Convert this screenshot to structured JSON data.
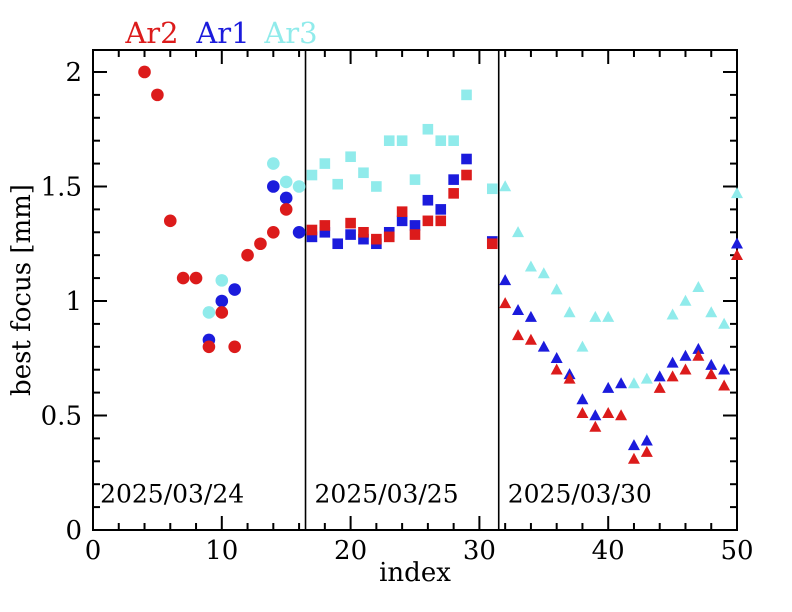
{
  "chart_data": {
    "type": "scatter",
    "xlabel": "index",
    "ylabel": "best focus [mm]",
    "xlim": [
      0,
      50
    ],
    "ylim": [
      0,
      2.096
    ],
    "x_major_ticks": [
      0,
      10,
      20,
      30,
      40,
      50
    ],
    "x_minor_step": 2,
    "y_major_ticks": [
      0,
      0.5,
      1,
      1.5,
      2
    ],
    "y_major_tick_labels": [
      "0",
      "0.5",
      "1",
      "1.5",
      "2"
    ],
    "y_minor_step": 0.1,
    "grid": false,
    "frame_color": "#000000",
    "dividers_x": [
      16.5,
      31.5
    ],
    "annotations": [
      {
        "text": "2025/03/24",
        "x_index": 0.55,
        "y_value": 0.12
      },
      {
        "text": "2025/03/25",
        "x_index": 17.2,
        "y_value": 0.12
      },
      {
        "text": "2025/03/30",
        "x_index": 32.2,
        "y_value": 0.12
      }
    ],
    "legend": [
      {
        "label": "Ar2",
        "color": "#dc1b1b"
      },
      {
        "label": "Ar1",
        "color": "#1b1bdc"
      },
      {
        "label": "Ar3",
        "color": "#90ebeb"
      }
    ],
    "legend_position": "top-left-above-frame",
    "series": [
      {
        "name": "Ar3",
        "color": "#90ebeb",
        "points_by_marker": {
          "circle": [
            [
              9,
              0.95
            ],
            [
              10,
              1.09
            ],
            [
              14,
              1.6
            ],
            [
              15,
              1.52
            ],
            [
              16,
              1.5
            ]
          ],
          "square": [
            [
              17,
              1.55
            ],
            [
              18,
              1.6
            ],
            [
              19,
              1.51
            ],
            [
              20,
              1.63
            ],
            [
              21,
              1.56
            ],
            [
              22,
              1.5
            ],
            [
              23,
              1.7
            ],
            [
              24,
              1.7
            ],
            [
              25,
              1.53
            ],
            [
              26,
              1.75
            ],
            [
              27,
              1.7
            ],
            [
              28,
              1.7
            ],
            [
              29,
              1.9
            ],
            [
              31,
              1.49
            ]
          ],
          "triangle": [
            [
              32,
              1.5
            ],
            [
              33,
              1.3
            ],
            [
              34,
              1.15
            ],
            [
              35,
              1.12
            ],
            [
              36,
              1.05
            ],
            [
              37,
              0.95
            ],
            [
              38,
              0.8
            ],
            [
              39,
              0.93
            ],
            [
              40,
              0.93
            ],
            [
              42,
              0.64
            ],
            [
              43,
              0.66
            ],
            [
              45,
              0.94
            ],
            [
              46,
              1.0
            ],
            [
              47,
              1.06
            ],
            [
              48,
              0.95
            ],
            [
              49,
              0.9
            ],
            [
              50,
              1.47
            ]
          ]
        }
      },
      {
        "name": "Ar1",
        "color": "#1b1bdc",
        "points_by_marker": {
          "circle": [
            [
              9,
              0.83
            ],
            [
              10,
              1.0
            ],
            [
              11,
              1.05
            ],
            [
              14,
              1.5
            ],
            [
              15,
              1.45
            ],
            [
              16,
              1.3
            ]
          ],
          "square": [
            [
              17,
              1.28
            ],
            [
              18,
              1.3
            ],
            [
              19,
              1.25
            ],
            [
              20,
              1.29
            ],
            [
              21,
              1.27
            ],
            [
              22,
              1.25
            ],
            [
              23,
              1.3
            ],
            [
              24,
              1.35
            ],
            [
              25,
              1.33
            ],
            [
              26,
              1.44
            ],
            [
              27,
              1.4
            ],
            [
              28,
              1.53
            ],
            [
              29,
              1.62
            ],
            [
              31,
              1.26
            ]
          ],
          "triangle": [
            [
              32,
              1.09
            ],
            [
              33,
              0.96
            ],
            [
              34,
              0.93
            ],
            [
              35,
              0.8
            ],
            [
              36,
              0.75
            ],
            [
              37,
              0.68
            ],
            [
              38,
              0.57
            ],
            [
              39,
              0.5
            ],
            [
              40,
              0.62
            ],
            [
              41,
              0.64
            ],
            [
              42,
              0.37
            ],
            [
              43,
              0.39
            ],
            [
              44,
              0.67
            ],
            [
              45,
              0.73
            ],
            [
              46,
              0.76
            ],
            [
              47,
              0.79
            ],
            [
              48,
              0.72
            ],
            [
              49,
              0.7
            ],
            [
              50,
              1.25
            ]
          ]
        }
      },
      {
        "name": "Ar2",
        "color": "#dc1b1b",
        "points_by_marker": {
          "circle": [
            [
              4,
              2.0
            ],
            [
              5,
              1.9
            ],
            [
              6,
              1.35
            ],
            [
              7,
              1.1
            ],
            [
              8,
              1.1
            ],
            [
              9,
              0.8
            ],
            [
              10,
              0.95
            ],
            [
              11,
              0.8
            ],
            [
              12,
              1.2
            ],
            [
              13,
              1.25
            ],
            [
              14,
              1.3
            ],
            [
              15,
              1.4
            ]
          ],
          "square": [
            [
              17,
              1.31
            ],
            [
              18,
              1.33
            ],
            [
              20,
              1.34
            ],
            [
              21,
              1.3
            ],
            [
              22,
              1.27
            ],
            [
              23,
              1.28
            ],
            [
              24,
              1.39
            ],
            [
              25,
              1.29
            ],
            [
              26,
              1.35
            ],
            [
              27,
              1.35
            ],
            [
              28,
              1.47
            ],
            [
              29,
              1.55
            ],
            [
              31,
              1.25
            ]
          ],
          "triangle": [
            [
              32,
              0.99
            ],
            [
              33,
              0.85
            ],
            [
              34,
              0.83
            ],
            [
              36,
              0.7
            ],
            [
              37,
              0.66
            ],
            [
              38,
              0.51
            ],
            [
              39,
              0.45
            ],
            [
              40,
              0.51
            ],
            [
              41,
              0.5
            ],
            [
              42,
              0.31
            ],
            [
              43,
              0.34
            ],
            [
              44,
              0.62
            ],
            [
              45,
              0.67
            ],
            [
              46,
              0.7
            ],
            [
              47,
              0.76
            ],
            [
              48,
              0.68
            ],
            [
              49,
              0.63
            ],
            [
              50,
              1.2
            ]
          ]
        }
      }
    ]
  }
}
